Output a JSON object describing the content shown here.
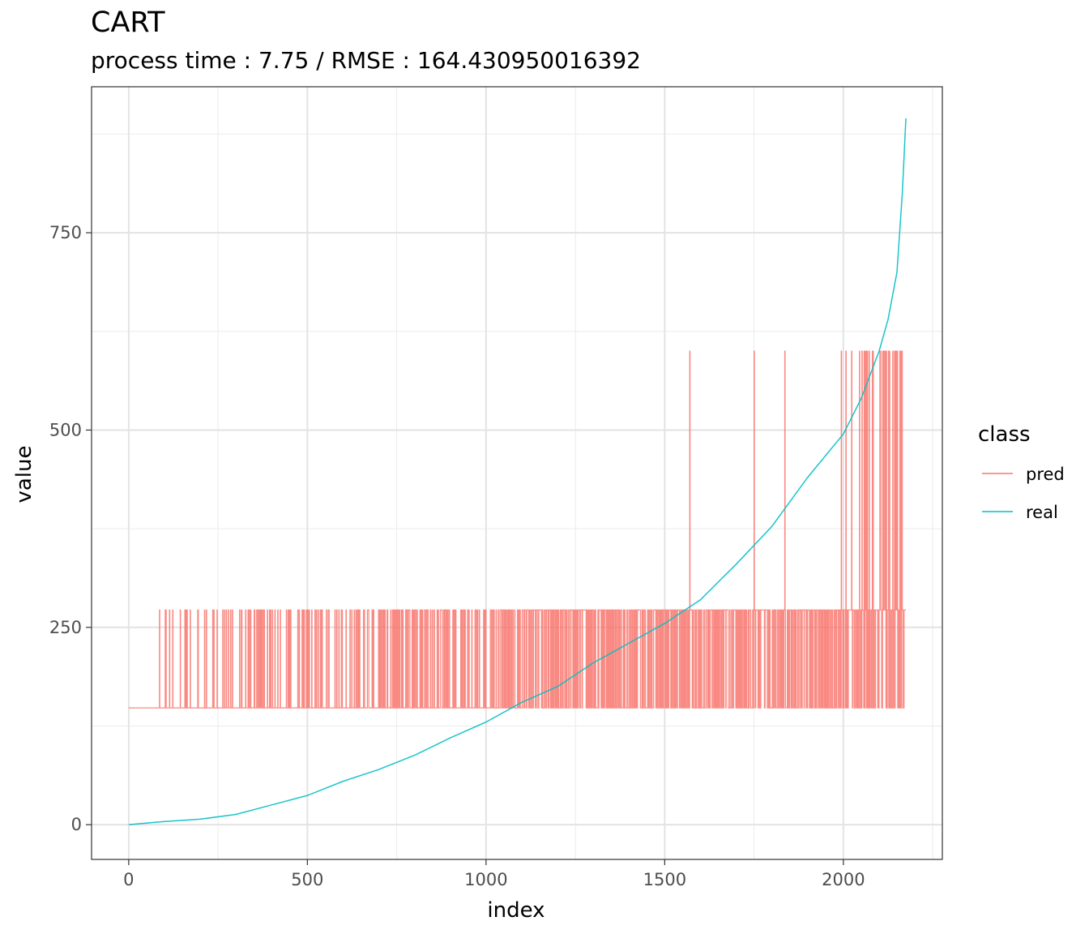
{
  "chart_data": {
    "type": "line",
    "title": "CART",
    "subtitle": "process time : 7.75 / RMSE : 164.430950016392",
    "xlabel": "index",
    "ylabel": "value",
    "xlim": [
      -104,
      2277
    ],
    "ylim": [
      -44,
      935
    ],
    "x_ticks": [
      0,
      500,
      1000,
      1500,
      2000
    ],
    "y_ticks": [
      0,
      250,
      500,
      750
    ],
    "grid": true,
    "legend": {
      "title": "class",
      "position": "right"
    },
    "series": [
      {
        "name": "pred",
        "color": "#F8766D",
        "levels": [
          148,
          272,
          600
        ],
        "x_range": [
          0,
          2175
        ],
        "note_values": "piecewise-constant predictions alternating among the listed levels"
      },
      {
        "name": "real",
        "color": "#00BFC4",
        "x": [
          0,
          100,
          200,
          300,
          400,
          500,
          600,
          700,
          800,
          900,
          1000,
          1100,
          1200,
          1300,
          1400,
          1500,
          1600,
          1700,
          1800,
          1900,
          2000,
          2050,
          2100,
          2125,
          2150,
          2165,
          2175
        ],
        "values": [
          0,
          4,
          7,
          13,
          25,
          37,
          55,
          70,
          88,
          110,
          130,
          155,
          175,
          205,
          230,
          255,
          285,
          330,
          378,
          440,
          495,
          540,
          600,
          640,
          700,
          800,
          895
        ]
      }
    ]
  }
}
